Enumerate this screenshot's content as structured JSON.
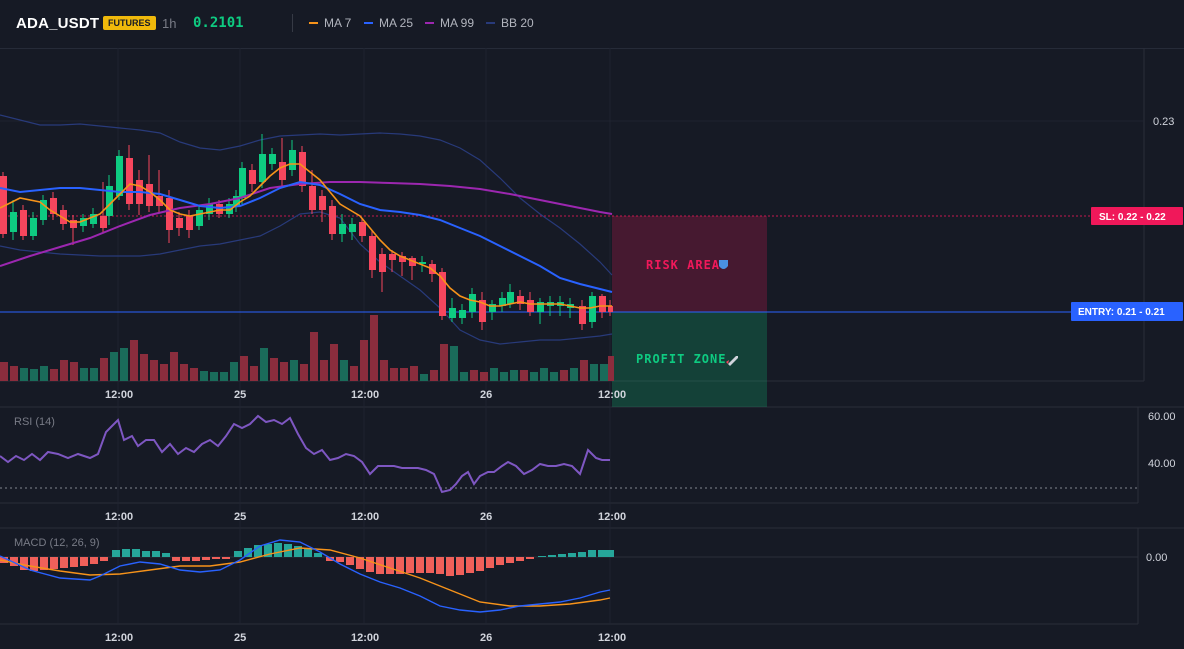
{
  "header": {
    "symbol": "ADA_USDT",
    "badge": "FUTURES",
    "timeframe": "1h",
    "price": "0.2101"
  },
  "legend": [
    {
      "label": "MA 7",
      "color": "#f7931a"
    },
    {
      "label": "MA 25",
      "color": "#2962ff"
    },
    {
      "label": "MA 99",
      "color": "#9c27b0"
    },
    {
      "label": "BB 20",
      "color": "#283a7a"
    }
  ],
  "colors": {
    "up": "#0ecb81",
    "down": "#f6465d",
    "risk": "#f0185a",
    "profit": "#0ecb81",
    "entry": "#2962ff",
    "rsi": "#7e57c2"
  },
  "price_axis": {
    "labels": [
      "0.23"
    ]
  },
  "sl_tag": "SL: 0.22 - 0.22",
  "entry_tag": "ENTRY: 0.21 - 0.21",
  "risk_label": "RISK AREA",
  "profit_label": "PROFIT ZONE",
  "time_labels": [
    "12:00",
    "25",
    "12:00",
    "26",
    "12:00"
  ],
  "rsi": {
    "title": "RSI (14)",
    "axis": [
      "60.00",
      "40.00"
    ]
  },
  "macd": {
    "title": "MACD (12, 26, 9)",
    "axis": [
      "0.00"
    ]
  }
}
